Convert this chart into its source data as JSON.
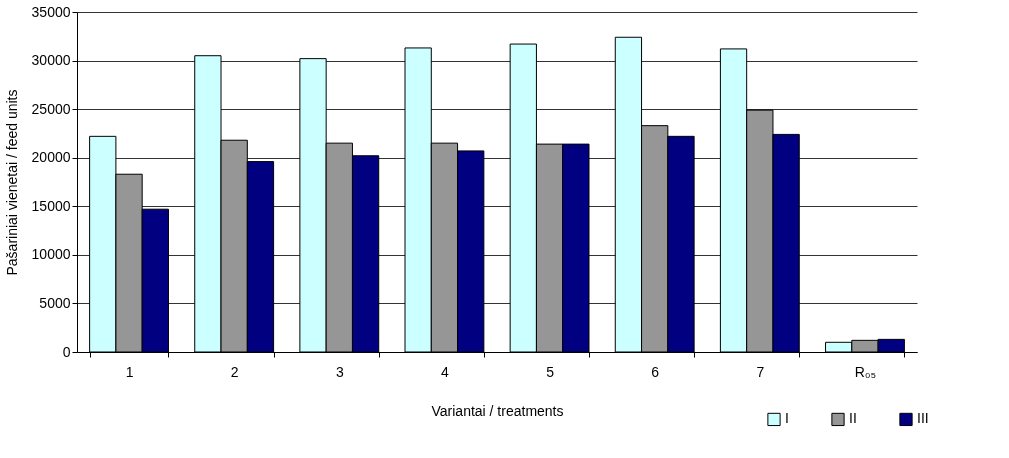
{
  "chart_data": {
    "type": "bar",
    "xlabel": "Variantai / treatments",
    "ylabel": "Pašariniai vienetai / feed units",
    "categories": [
      "1",
      "2",
      "3",
      "4",
      "5",
      "6",
      "7",
      "R₀₅"
    ],
    "series": [
      {
        "name": "I",
        "color": "#ccffff",
        "values": [
          22200,
          30500,
          30200,
          31300,
          31700,
          32400,
          31200,
          1000
        ]
      },
      {
        "name": "II",
        "color": "#969696",
        "values": [
          18300,
          21800,
          21500,
          21500,
          21400,
          23300,
          24900,
          1200
        ]
      },
      {
        "name": "III",
        "color": "#000080",
        "values": [
          14700,
          19600,
          20200,
          20700,
          21400,
          22200,
          22400,
          1300
        ]
      }
    ],
    "ylim": [
      0,
      35000
    ],
    "yticks": [
      0,
      5000,
      10000,
      15000,
      20000,
      25000,
      30000,
      35000
    ],
    "grid": "y",
    "legend": "bottom right"
  }
}
